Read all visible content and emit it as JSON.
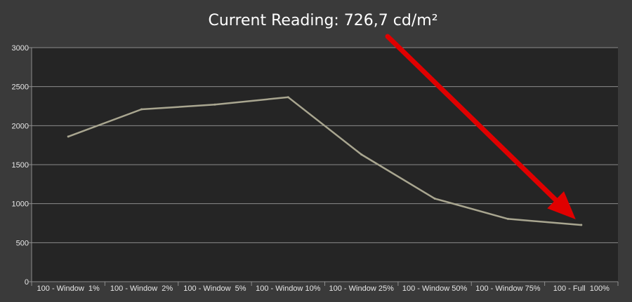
{
  "colors": {
    "background": "#3a3a3a",
    "plot_background": "#252525",
    "gridline": "#8c8c8c",
    "series_line": "#a9a690",
    "arrow": "#e00000",
    "text": "#e6e6e6"
  },
  "chart_data": {
    "type": "line",
    "title": "Current Reading: 726,7 cd/m²",
    "xlabel": "",
    "ylabel": "",
    "ylim": [
      0,
      3000
    ],
    "yticks": [
      0,
      500,
      1000,
      1500,
      2000,
      2500,
      3000
    ],
    "grid": true,
    "categories": [
      "100 - Window  1%",
      "100 - Window  2%",
      "100 - Window  5%",
      "100 - Window 10%",
      "100 - Window 25%",
      "100 - Window 50%",
      "100 - Window 75%",
      "100 - Full  100%"
    ],
    "series": [
      {
        "values": [
          1860,
          2210,
          2270,
          2365,
          1630,
          1065,
          805,
          727
        ]
      }
    ],
    "annotation": {
      "type": "arrow",
      "target_category": "100 - Full  100%",
      "color": "#e00000"
    }
  }
}
